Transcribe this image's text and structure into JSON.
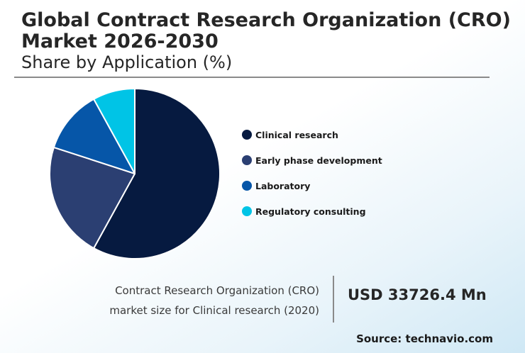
{
  "header": {
    "title": "Global Contract Research Organization (CRO) Market 2026-2030",
    "subtitle": "Share by Application (%)"
  },
  "chart_data": {
    "type": "pie",
    "title": "Global Contract Research Organization (CRO) Market 2026-2030",
    "subtitle": "Share by Application (%)",
    "categories": [
      "Clinical research",
      "Early phase development",
      "Laboratory",
      "Regulatory consulting"
    ],
    "values": [
      58,
      22,
      12,
      8
    ],
    "colors": [
      "#061a40",
      "#2b3f72",
      "#0656a8",
      "#00c4e6"
    ],
    "legend_position": "right"
  },
  "caption": {
    "line1": "Contract Research Organization (CRO)",
    "line2": "market size for Clinical research (2020)"
  },
  "stat": "USD 33726.4 Mn",
  "source": "Source: technavio.com"
}
